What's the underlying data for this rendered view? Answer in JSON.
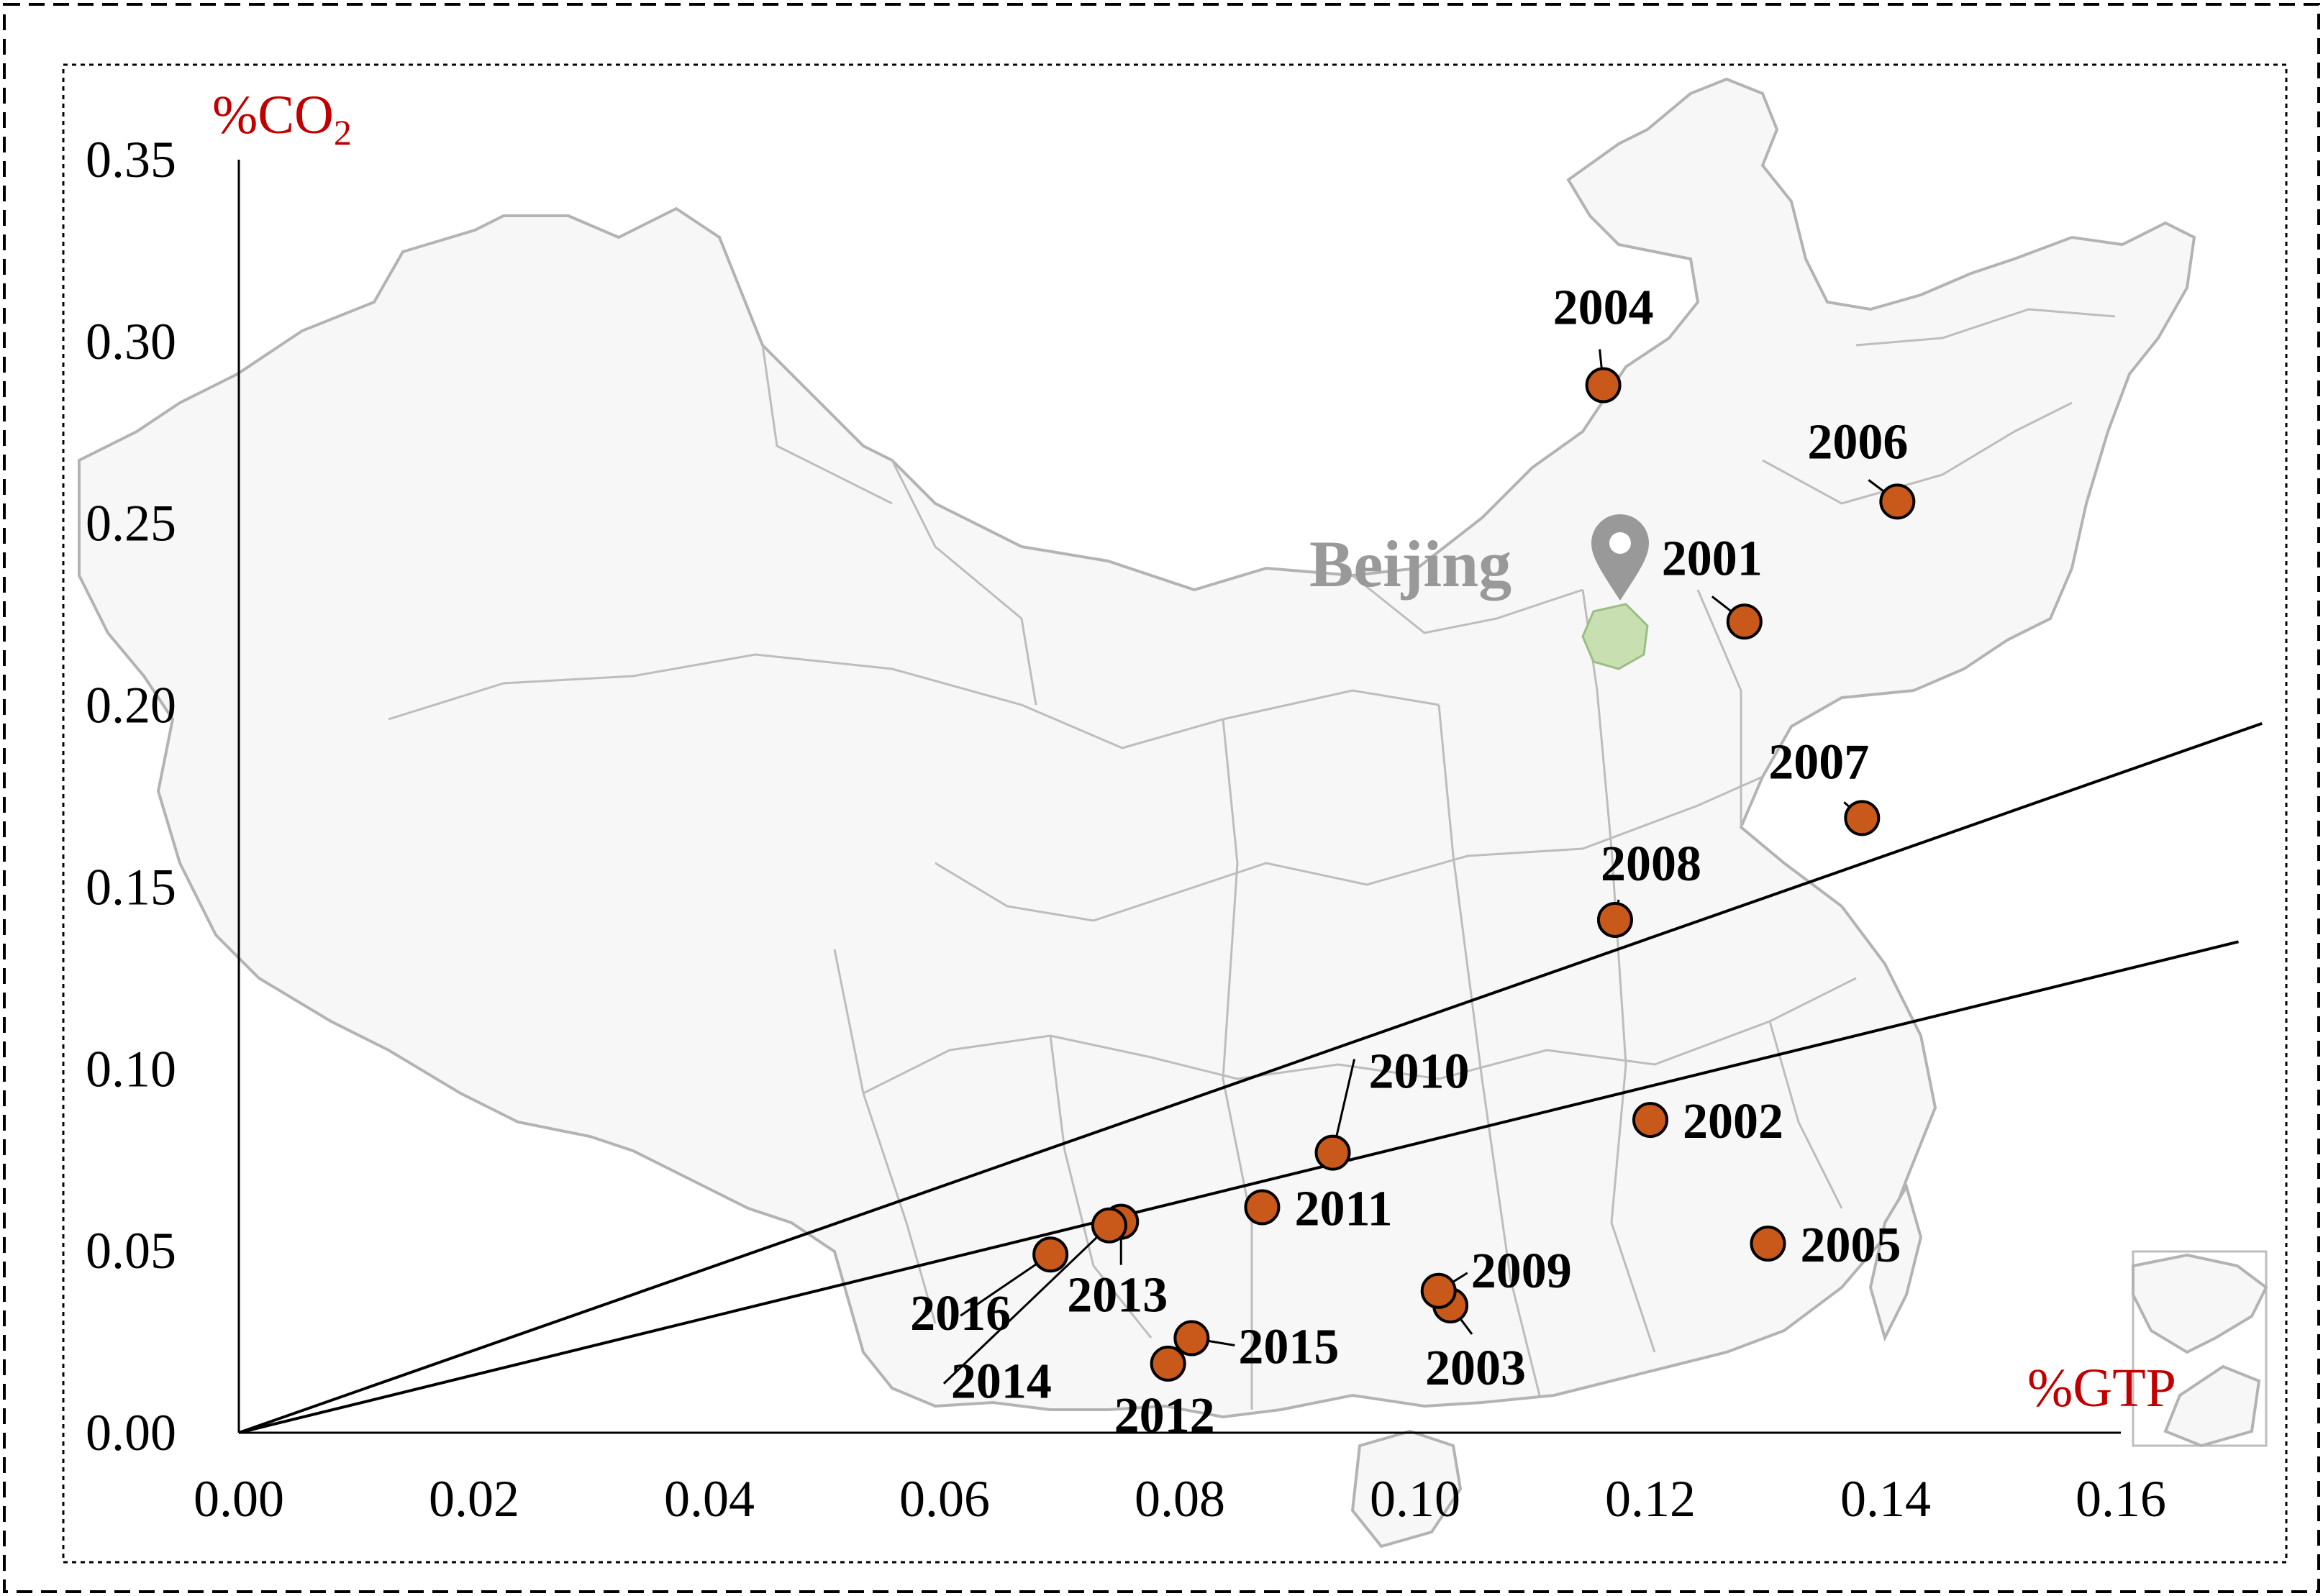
{
  "colors": {
    "point_fill": "#c9591b",
    "point_stroke": "#000000",
    "axis_title": "#c00000",
    "map_fill": "#f7f7f7",
    "map_stroke": "#b3b3b3",
    "beijing_fill": "#c8dfb2",
    "marker_color": "#999999"
  },
  "map": {
    "city_label": "Beijing",
    "marker_icon": "map-pin-icon"
  },
  "chart_data": {
    "type": "scatter",
    "xlabel": "%GTP",
    "ylabel_main": "%CO",
    "ylabel_sub": "2",
    "xlim": [
      0.0,
      0.16
    ],
    "ylim": [
      0.0,
      0.35
    ],
    "x_ticks": [
      "0.00",
      "0.02",
      "0.04",
      "0.06",
      "0.08",
      "0.10",
      "0.12",
      "0.14",
      "0.16"
    ],
    "y_ticks": [
      "0.00",
      "0.05",
      "0.10",
      "0.15",
      "0.20",
      "0.25",
      "0.30",
      "0.35"
    ],
    "grid": false,
    "background": "map of China",
    "points": [
      {
        "label": "2001",
        "x": 0.128,
        "y": 0.223
      },
      {
        "label": "2002",
        "x": 0.12,
        "y": 0.086
      },
      {
        "label": "2003",
        "x": 0.103,
        "y": 0.035
      },
      {
        "label": "2004",
        "x": 0.116,
        "y": 0.288
      },
      {
        "label": "2005",
        "x": 0.13,
        "y": 0.052
      },
      {
        "label": "2006",
        "x": 0.141,
        "y": 0.256
      },
      {
        "label": "2007",
        "x": 0.138,
        "y": 0.169
      },
      {
        "label": "2008",
        "x": 0.117,
        "y": 0.141
      },
      {
        "label": "2009",
        "x": 0.102,
        "y": 0.039
      },
      {
        "label": "2010",
        "x": 0.093,
        "y": 0.077
      },
      {
        "label": "2011",
        "x": 0.087,
        "y": 0.062
      },
      {
        "label": "2012",
        "x": 0.079,
        "y": 0.019
      },
      {
        "label": "2013",
        "x": 0.075,
        "y": 0.058
      },
      {
        "label": "2014",
        "x": 0.074,
        "y": 0.057
      },
      {
        "label": "2015",
        "x": 0.081,
        "y": 0.026
      },
      {
        "label": "2016",
        "x": 0.069,
        "y": 0.049
      }
    ],
    "reference_lines": [
      {
        "x": [
          0.0,
          0.172
        ],
        "y": [
          0.0,
          0.195
        ]
      },
      {
        "x": [
          0.0,
          0.17
        ],
        "y": [
          0.0,
          0.135
        ]
      }
    ]
  }
}
